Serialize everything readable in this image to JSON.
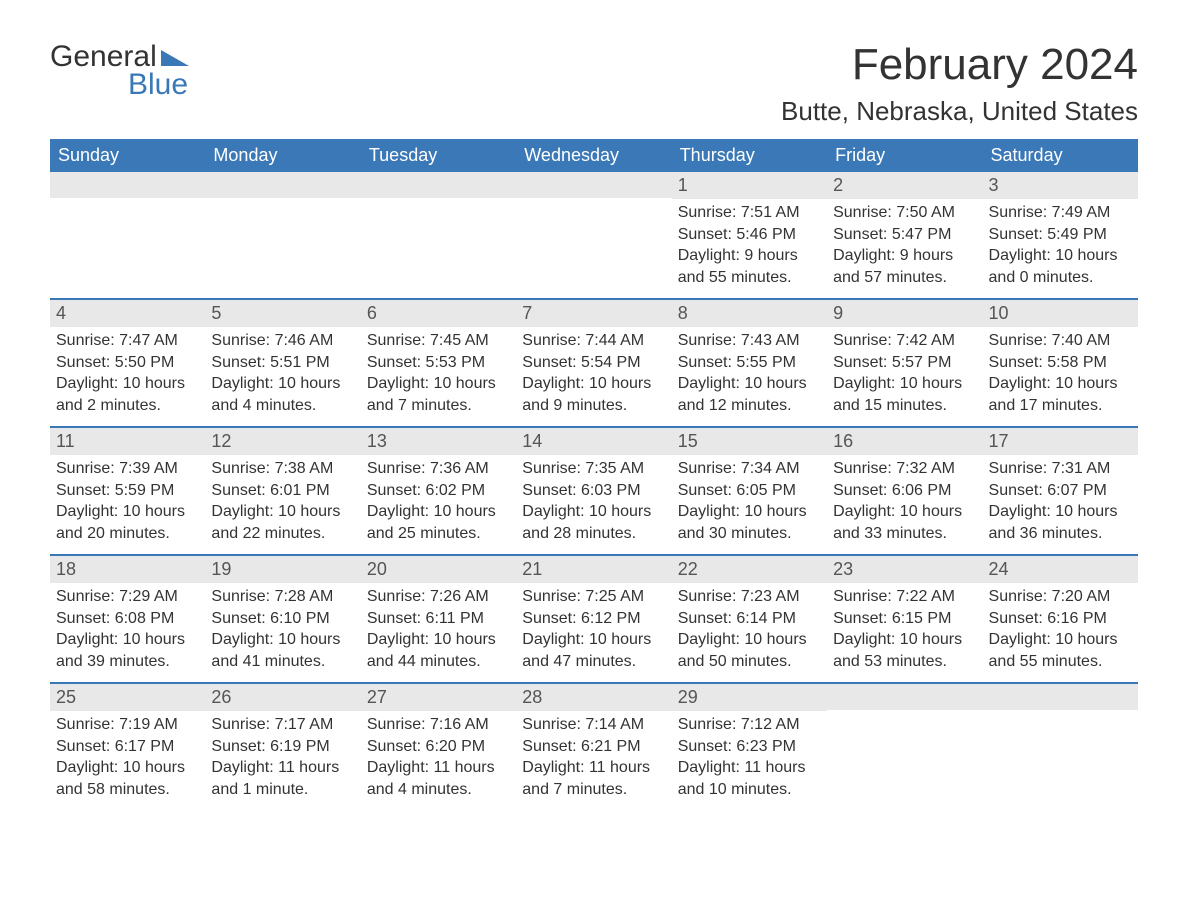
{
  "logo": {
    "general": "General",
    "blue": "Blue",
    "tri_color": "#3a78b7"
  },
  "title": "February 2024",
  "location": "Butte, Nebraska, United States",
  "colors": {
    "header_bg": "#3a78b7",
    "header_text": "#ffffff",
    "daynum_bg": "#e8e8e8",
    "text": "#333333",
    "week_border": "#3a78b7",
    "background": "#ffffff"
  },
  "typography": {
    "title_fontsize": 44,
    "location_fontsize": 26,
    "weekday_fontsize": 18,
    "daynum_fontsize": 18,
    "body_fontsize": 16,
    "logo_fontsize": 30
  },
  "weekdays": [
    "Sunday",
    "Monday",
    "Tuesday",
    "Wednesday",
    "Thursday",
    "Friday",
    "Saturday"
  ],
  "weeks": [
    [
      {
        "day": "",
        "sunrise": "",
        "sunset": "",
        "daylight": ""
      },
      {
        "day": "",
        "sunrise": "",
        "sunset": "",
        "daylight": ""
      },
      {
        "day": "",
        "sunrise": "",
        "sunset": "",
        "daylight": ""
      },
      {
        "day": "",
        "sunrise": "",
        "sunset": "",
        "daylight": ""
      },
      {
        "day": "1",
        "sunrise": "Sunrise: 7:51 AM",
        "sunset": "Sunset: 5:46 PM",
        "daylight": "Daylight: 9 hours and 55 minutes."
      },
      {
        "day": "2",
        "sunrise": "Sunrise: 7:50 AM",
        "sunset": "Sunset: 5:47 PM",
        "daylight": "Daylight: 9 hours and 57 minutes."
      },
      {
        "day": "3",
        "sunrise": "Sunrise: 7:49 AM",
        "sunset": "Sunset: 5:49 PM",
        "daylight": "Daylight: 10 hours and 0 minutes."
      }
    ],
    [
      {
        "day": "4",
        "sunrise": "Sunrise: 7:47 AM",
        "sunset": "Sunset: 5:50 PM",
        "daylight": "Daylight: 10 hours and 2 minutes."
      },
      {
        "day": "5",
        "sunrise": "Sunrise: 7:46 AM",
        "sunset": "Sunset: 5:51 PM",
        "daylight": "Daylight: 10 hours and 4 minutes."
      },
      {
        "day": "6",
        "sunrise": "Sunrise: 7:45 AM",
        "sunset": "Sunset: 5:53 PM",
        "daylight": "Daylight: 10 hours and 7 minutes."
      },
      {
        "day": "7",
        "sunrise": "Sunrise: 7:44 AM",
        "sunset": "Sunset: 5:54 PM",
        "daylight": "Daylight: 10 hours and 9 minutes."
      },
      {
        "day": "8",
        "sunrise": "Sunrise: 7:43 AM",
        "sunset": "Sunset: 5:55 PM",
        "daylight": "Daylight: 10 hours and 12 minutes."
      },
      {
        "day": "9",
        "sunrise": "Sunrise: 7:42 AM",
        "sunset": "Sunset: 5:57 PM",
        "daylight": "Daylight: 10 hours and 15 minutes."
      },
      {
        "day": "10",
        "sunrise": "Sunrise: 7:40 AM",
        "sunset": "Sunset: 5:58 PM",
        "daylight": "Daylight: 10 hours and 17 minutes."
      }
    ],
    [
      {
        "day": "11",
        "sunrise": "Sunrise: 7:39 AM",
        "sunset": "Sunset: 5:59 PM",
        "daylight": "Daylight: 10 hours and 20 minutes."
      },
      {
        "day": "12",
        "sunrise": "Sunrise: 7:38 AM",
        "sunset": "Sunset: 6:01 PM",
        "daylight": "Daylight: 10 hours and 22 minutes."
      },
      {
        "day": "13",
        "sunrise": "Sunrise: 7:36 AM",
        "sunset": "Sunset: 6:02 PM",
        "daylight": "Daylight: 10 hours and 25 minutes."
      },
      {
        "day": "14",
        "sunrise": "Sunrise: 7:35 AM",
        "sunset": "Sunset: 6:03 PM",
        "daylight": "Daylight: 10 hours and 28 minutes."
      },
      {
        "day": "15",
        "sunrise": "Sunrise: 7:34 AM",
        "sunset": "Sunset: 6:05 PM",
        "daylight": "Daylight: 10 hours and 30 minutes."
      },
      {
        "day": "16",
        "sunrise": "Sunrise: 7:32 AM",
        "sunset": "Sunset: 6:06 PM",
        "daylight": "Daylight: 10 hours and 33 minutes."
      },
      {
        "day": "17",
        "sunrise": "Sunrise: 7:31 AM",
        "sunset": "Sunset: 6:07 PM",
        "daylight": "Daylight: 10 hours and 36 minutes."
      }
    ],
    [
      {
        "day": "18",
        "sunrise": "Sunrise: 7:29 AM",
        "sunset": "Sunset: 6:08 PM",
        "daylight": "Daylight: 10 hours and 39 minutes."
      },
      {
        "day": "19",
        "sunrise": "Sunrise: 7:28 AM",
        "sunset": "Sunset: 6:10 PM",
        "daylight": "Daylight: 10 hours and 41 minutes."
      },
      {
        "day": "20",
        "sunrise": "Sunrise: 7:26 AM",
        "sunset": "Sunset: 6:11 PM",
        "daylight": "Daylight: 10 hours and 44 minutes."
      },
      {
        "day": "21",
        "sunrise": "Sunrise: 7:25 AM",
        "sunset": "Sunset: 6:12 PM",
        "daylight": "Daylight: 10 hours and 47 minutes."
      },
      {
        "day": "22",
        "sunrise": "Sunrise: 7:23 AM",
        "sunset": "Sunset: 6:14 PM",
        "daylight": "Daylight: 10 hours and 50 minutes."
      },
      {
        "day": "23",
        "sunrise": "Sunrise: 7:22 AM",
        "sunset": "Sunset: 6:15 PM",
        "daylight": "Daylight: 10 hours and 53 minutes."
      },
      {
        "day": "24",
        "sunrise": "Sunrise: 7:20 AM",
        "sunset": "Sunset: 6:16 PM",
        "daylight": "Daylight: 10 hours and 55 minutes."
      }
    ],
    [
      {
        "day": "25",
        "sunrise": "Sunrise: 7:19 AM",
        "sunset": "Sunset: 6:17 PM",
        "daylight": "Daylight: 10 hours and 58 minutes."
      },
      {
        "day": "26",
        "sunrise": "Sunrise: 7:17 AM",
        "sunset": "Sunset: 6:19 PM",
        "daylight": "Daylight: 11 hours and 1 minute."
      },
      {
        "day": "27",
        "sunrise": "Sunrise: 7:16 AM",
        "sunset": "Sunset: 6:20 PM",
        "daylight": "Daylight: 11 hours and 4 minutes."
      },
      {
        "day": "28",
        "sunrise": "Sunrise: 7:14 AM",
        "sunset": "Sunset: 6:21 PM",
        "daylight": "Daylight: 11 hours and 7 minutes."
      },
      {
        "day": "29",
        "sunrise": "Sunrise: 7:12 AM",
        "sunset": "Sunset: 6:23 PM",
        "daylight": "Daylight: 11 hours and 10 minutes."
      },
      {
        "day": "",
        "sunrise": "",
        "sunset": "",
        "daylight": ""
      },
      {
        "day": "",
        "sunrise": "",
        "sunset": "",
        "daylight": ""
      }
    ]
  ]
}
